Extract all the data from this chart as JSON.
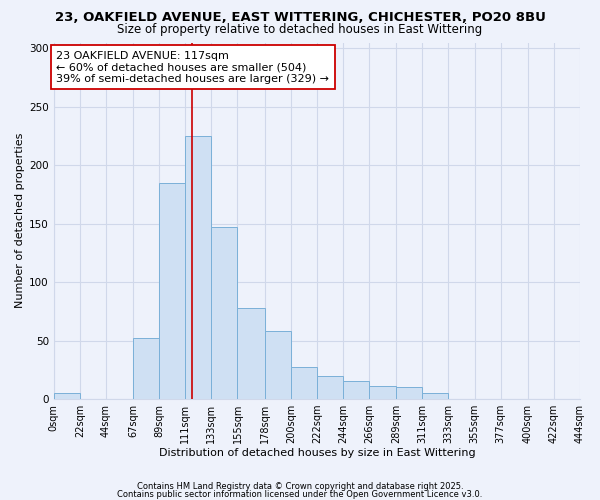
{
  "title": "23, OAKFIELD AVENUE, EAST WITTERING, CHICHESTER, PO20 8BU",
  "subtitle": "Size of property relative to detached houses in East Wittering",
  "xlabel": "Distribution of detached houses by size in East Wittering",
  "ylabel": "Number of detached properties",
  "bar_edges": [
    0,
    22,
    44,
    67,
    89,
    111,
    133,
    155,
    178,
    200,
    222,
    244,
    266,
    289,
    311,
    333,
    355,
    377,
    400,
    422,
    444
  ],
  "bar_heights": [
    5,
    0,
    0,
    52,
    185,
    225,
    147,
    78,
    58,
    27,
    20,
    15,
    11,
    10,
    5,
    0,
    0,
    0,
    0,
    0
  ],
  "bar_color": "#cfe0f3",
  "bar_edgecolor": "#7ab0d8",
  "vline_x": 117,
  "vline_color": "#cc0000",
  "annotation_title": "23 OAKFIELD AVENUE: 117sqm",
  "annotation_line2": "← 60% of detached houses are smaller (504)",
  "annotation_line3": "39% of semi-detached houses are larger (329) →",
  "annotation_box_facecolor": "#ffffff",
  "annotation_box_edgecolor": "#cc0000",
  "ylim": [
    0,
    305
  ],
  "yticks": [
    0,
    50,
    100,
    150,
    200,
    250,
    300
  ],
  "tick_labels": [
    "0sqm",
    "22sqm",
    "44sqm",
    "67sqm",
    "89sqm",
    "111sqm",
    "133sqm",
    "155sqm",
    "178sqm",
    "200sqm",
    "222sqm",
    "244sqm",
    "266sqm",
    "289sqm",
    "311sqm",
    "333sqm",
    "355sqm",
    "377sqm",
    "400sqm",
    "422sqm",
    "444sqm"
  ],
  "footnote1": "Contains HM Land Registry data © Crown copyright and database right 2025.",
  "footnote2": "Contains public sector information licensed under the Open Government Licence v3.0.",
  "background_color": "#eef2fb",
  "grid_color": "#d0d8ea",
  "title_fontsize": 9.5,
  "subtitle_fontsize": 8.5,
  "xlabel_fontsize": 8,
  "ylabel_fontsize": 8,
  "tick_fontsize": 7,
  "annot_fontsize": 8,
  "footnote_fontsize": 6
}
